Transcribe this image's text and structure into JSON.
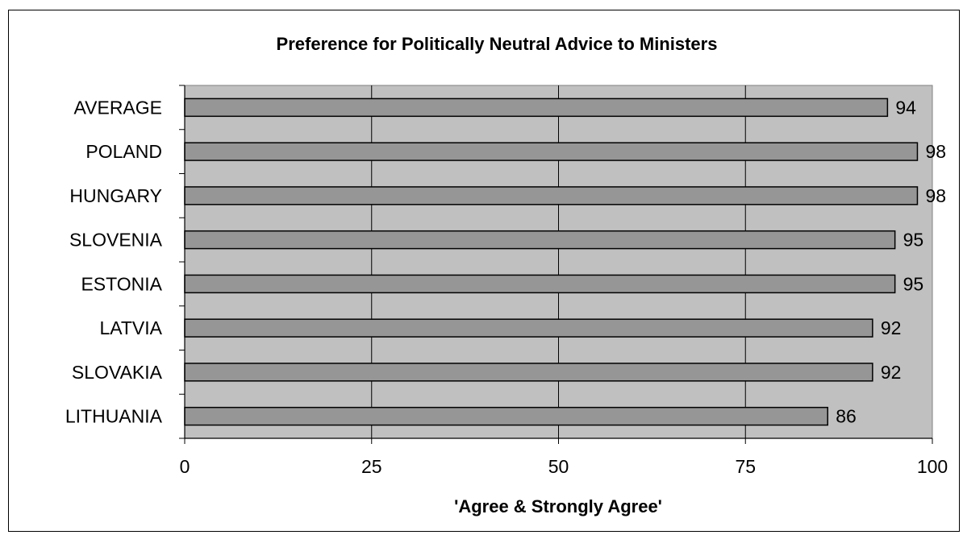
{
  "chart_data": {
    "type": "bar",
    "orientation": "horizontal",
    "title": "Preference for Politically Neutral Advice to Ministers",
    "xlabel": "'Agree & Strongly Agree'",
    "ylabel": "",
    "categories": [
      "AVERAGE",
      "POLAND",
      "HUNGARY",
      "SLOVENIA",
      "ESTONIA",
      "LATVIA",
      "SLOVAKIA",
      "LITHUANIA"
    ],
    "values": [
      94,
      98,
      98,
      95,
      95,
      92,
      92,
      86
    ],
    "xlim": [
      0,
      100
    ],
    "xticks": [
      "0",
      "25",
      "50",
      "75",
      "100"
    ],
    "grid": "vertical",
    "legend": "none",
    "colors": {
      "plot_background": "#c0c0c0",
      "bar_fill": "#969696",
      "bar_stroke": "#000000",
      "gridline": "#000000"
    }
  }
}
